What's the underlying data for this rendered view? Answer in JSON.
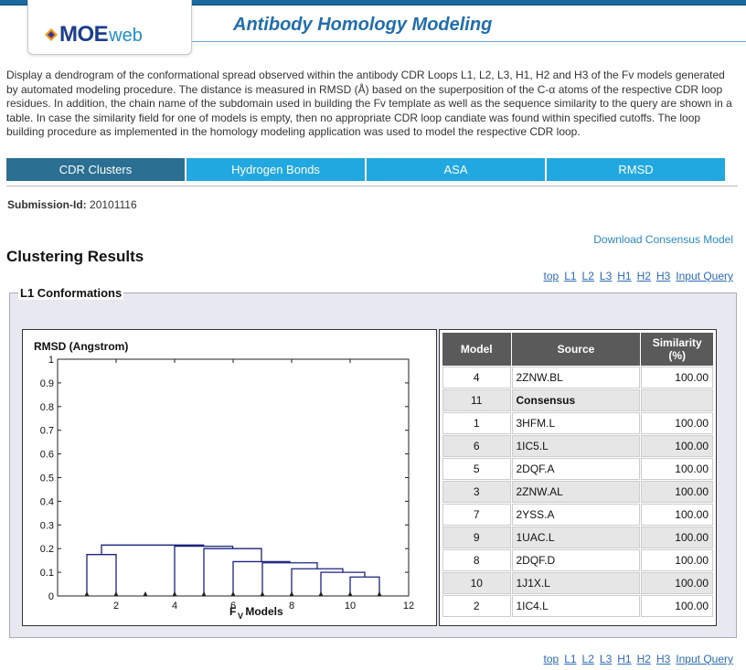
{
  "header": {
    "logo_moe": "MOE",
    "logo_web": "web",
    "app_title": "Antibody Homology Modeling",
    "logo_colors": [
      "#1b3f8c",
      "#1e8fcf",
      "#e8a31c",
      "#7a2a8a"
    ]
  },
  "description": "Display a dendrogram of the conformational spread observed within the antibody CDR Loops L1, L2, L3, H1, H2 and H3 of the Fv models generated by automated modeling procedure. The distance is measured in RMSD (Å) based on the superposition of the C-α atoms of the respective CDR loop residues. In addition, the chain name of the subdomain used in building the Fv template as well as the sequence similarity to the query are shown in a table. In case the similarity field for one of models is empty, then no appropriate CDR loop candiate was found within specified cutoffs. The loop building procedure as implemented in the homology modeling application was used to model the respective CDR loop.",
  "tabs": [
    {
      "label": "CDR Clusters",
      "active": true
    },
    {
      "label": "Hydrogen Bonds",
      "active": false
    },
    {
      "label": "ASA",
      "active": false
    },
    {
      "label": "RMSD",
      "active": false
    }
  ],
  "submission": {
    "label": "Submission-Id:",
    "value": "20101116"
  },
  "download_link": "Download Consensus Model",
  "results_title": "Clustering Results",
  "nav_links": [
    "top",
    "L1",
    "L2",
    "L3",
    "H1",
    "H2",
    "H3",
    "Input Query"
  ],
  "panel_title": "L1 Conformations",
  "table": {
    "headers": {
      "model": "Model",
      "source": "Source",
      "similarity_line1": "Similarity",
      "similarity_line2": "(%)"
    },
    "rows": [
      {
        "model": "4",
        "source": "2ZNW.BL",
        "similarity": "100.00"
      },
      {
        "model": "11",
        "source": "Consensus",
        "similarity": ""
      },
      {
        "model": "1",
        "source": "3HFM.L",
        "similarity": "100.00"
      },
      {
        "model": "6",
        "source": "1IC5.L",
        "similarity": "100.00"
      },
      {
        "model": "5",
        "source": "2DQF.A",
        "similarity": "100.00"
      },
      {
        "model": "3",
        "source": "2ZNW.AL",
        "similarity": "100.00"
      },
      {
        "model": "7",
        "source": "2YSS.A",
        "similarity": "100.00"
      },
      {
        "model": "9",
        "source": "1UAC.L",
        "similarity": "100.00"
      },
      {
        "model": "8",
        "source": "2DQF.D",
        "similarity": "100.00"
      },
      {
        "model": "10",
        "source": "1J1X.L",
        "similarity": "100.00"
      },
      {
        "model": "2",
        "source": "1IC4.L",
        "similarity": "100.00"
      }
    ]
  },
  "chart_data": {
    "type": "dendrogram",
    "ylabel": "RMSD (Angstrom)",
    "xlabel_main": "F",
    "xlabel_sub": "V",
    "xlabel_rest": " Models",
    "xlim": [
      0,
      12
    ],
    "ylim": [
      0,
      1
    ],
    "x_ticks": [
      "0",
      "2",
      "4",
      "6",
      "8",
      "10",
      "12"
    ],
    "y_ticks": [
      "0",
      "0.1",
      "0.2",
      "0.3",
      "0.4",
      "0.5",
      "0.6",
      "0.7",
      "0.8",
      "0.9",
      "1"
    ],
    "leaves": [
      1,
      2,
      3,
      4,
      5,
      6,
      7,
      8,
      9,
      10,
      11
    ],
    "links": [
      {
        "left": 10,
        "right": 11,
        "height": 0.08
      },
      {
        "left": 9,
        "right": 10.5,
        "height": 0.1
      },
      {
        "left": 8,
        "right": 9.75,
        "height": 0.115
      },
      {
        "left": 7,
        "right": 8.875,
        "height": 0.14
      },
      {
        "left": 6,
        "right": 7.9375,
        "height": 0.145
      },
      {
        "left": 5,
        "right": 6.96875,
        "height": 0.2
      },
      {
        "left": 4,
        "right": 5.984375,
        "height": 0.21
      },
      {
        "left": 1,
        "right": 2,
        "height": 0.175
      },
      {
        "left": 1.5,
        "right": 4.9921875,
        "height": 0.215
      }
    ],
    "line_color": "#1a237e",
    "grid": false
  }
}
